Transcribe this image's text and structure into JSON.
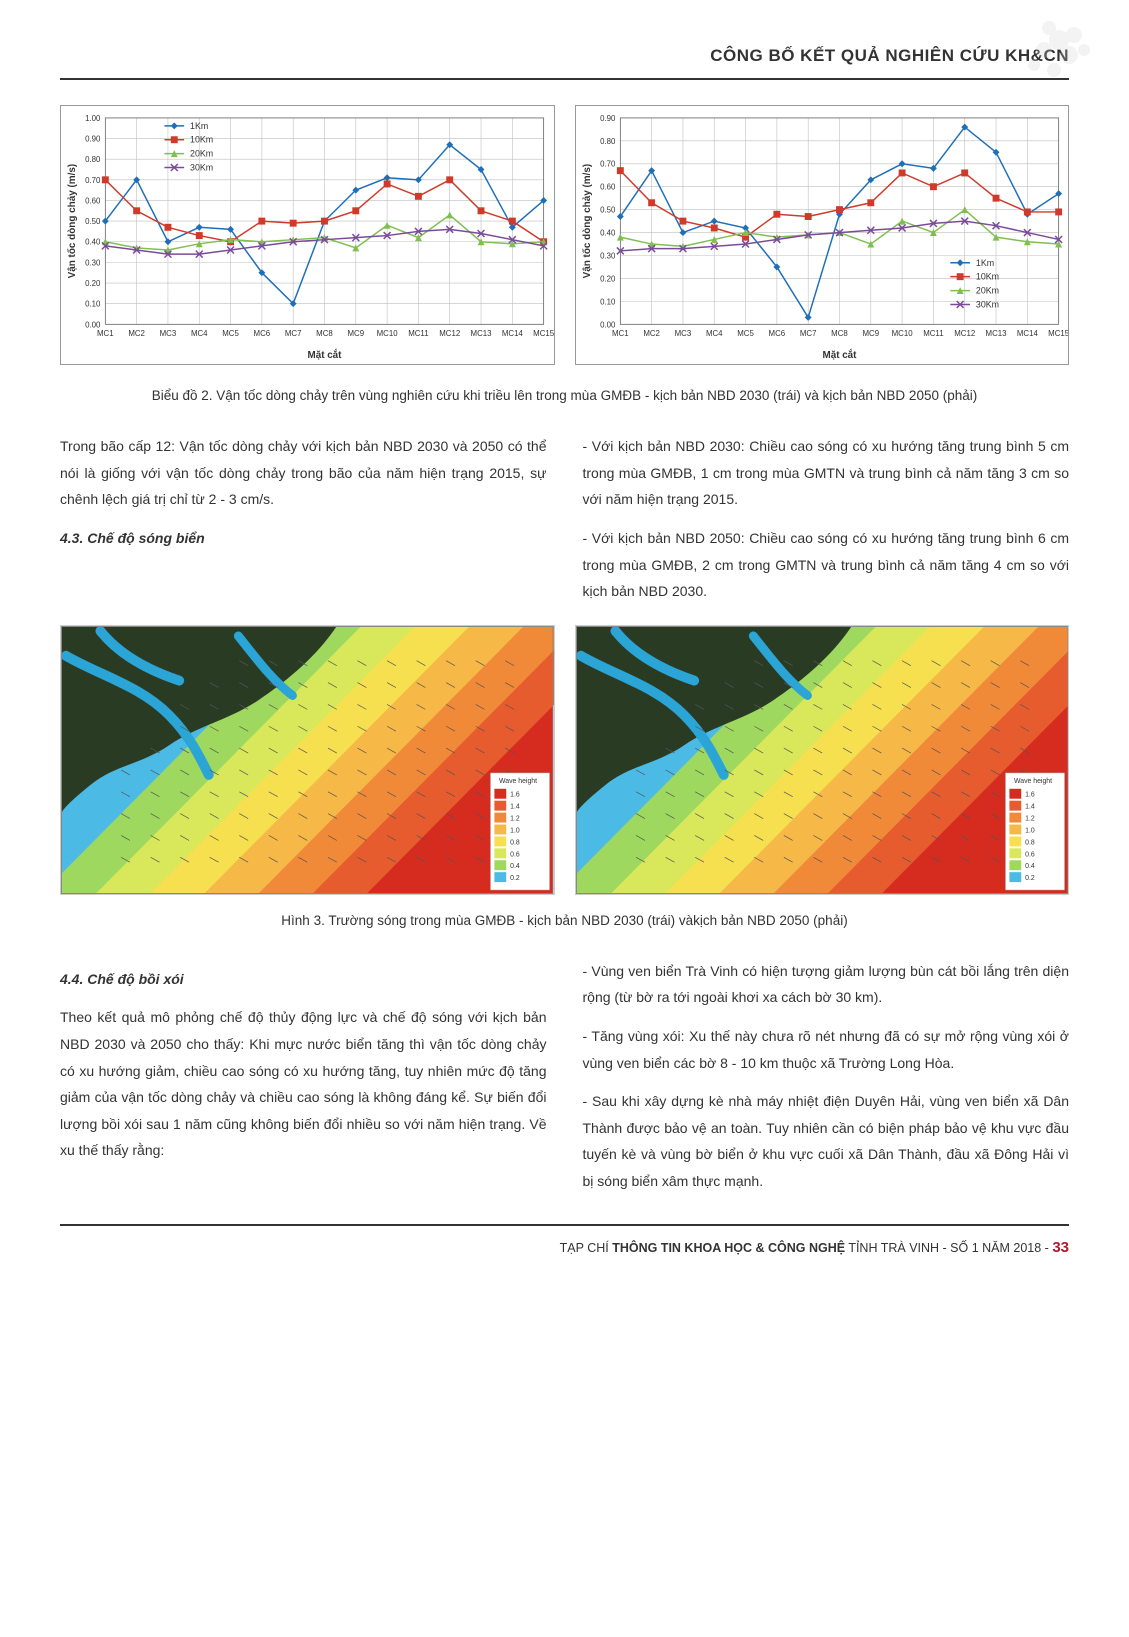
{
  "header": {
    "title": "CÔNG BỐ KẾT QUẢ NGHIÊN CỨU KH&CN"
  },
  "chart_left": {
    "type": "line",
    "xlabel": "Mặt cắt",
    "ylabel": "Vận tốc dòng chảy (m/s)",
    "ylim": [
      0.0,
      1.0
    ],
    "ytick_step": 0.1,
    "x_categories": [
      "MC1",
      "MC2",
      "MC3",
      "MC4",
      "MC5",
      "MC6",
      "MC7",
      "MC8",
      "MC9",
      "MC10",
      "MC11",
      "MC12",
      "MC13",
      "MC14",
      "MC15"
    ],
    "grid_color": "#bfbfbf",
    "background_color": "#ffffff",
    "series": [
      {
        "name": "1Km",
        "color": "#1f6fb8",
        "marker": "diamond",
        "values": [
          0.5,
          0.7,
          0.4,
          0.47,
          0.46,
          0.25,
          0.1,
          0.5,
          0.65,
          0.71,
          0.7,
          0.87,
          0.75,
          0.47,
          0.6
        ]
      },
      {
        "name": "10Km",
        "color": "#d03a2a",
        "marker": "square",
        "values": [
          0.7,
          0.55,
          0.47,
          0.43,
          0.4,
          0.5,
          0.49,
          0.5,
          0.55,
          0.68,
          0.62,
          0.7,
          0.55,
          0.5,
          0.4
        ]
      },
      {
        "name": "20Km",
        "color": "#7fbf4f",
        "marker": "triangle",
        "values": [
          0.4,
          0.37,
          0.36,
          0.39,
          0.41,
          0.4,
          0.41,
          0.42,
          0.37,
          0.48,
          0.42,
          0.53,
          0.4,
          0.39,
          0.4
        ]
      },
      {
        "name": "30Km",
        "color": "#7b4b9a",
        "marker": "cross",
        "values": [
          0.38,
          0.36,
          0.34,
          0.34,
          0.36,
          0.38,
          0.4,
          0.41,
          0.42,
          0.43,
          0.45,
          0.46,
          0.44,
          0.41,
          0.38
        ]
      }
    ],
    "legend_position": "top-left",
    "label_fontsize": 10,
    "tick_fontsize": 8
  },
  "chart_right": {
    "type": "line",
    "xlabel": "Mặt cắt",
    "ylabel": "Vận tốc dòng chảy (m/s)",
    "ylim": [
      0.0,
      0.9
    ],
    "ytick_step": 0.1,
    "x_categories": [
      "MC1",
      "MC2",
      "MC3",
      "MC4",
      "MC5",
      "MC6",
      "MC7",
      "MC8",
      "MC9",
      "MC10",
      "MC11",
      "MC12",
      "MC13",
      "MC14",
      "MC15"
    ],
    "grid_color": "#bfbfbf",
    "background_color": "#ffffff",
    "series": [
      {
        "name": "1Km",
        "color": "#1f6fb8",
        "marker": "diamond",
        "values": [
          0.47,
          0.67,
          0.4,
          0.45,
          0.42,
          0.25,
          0.03,
          0.48,
          0.63,
          0.7,
          0.68,
          0.86,
          0.75,
          0.48,
          0.57
        ]
      },
      {
        "name": "10Km",
        "color": "#d03a2a",
        "marker": "square",
        "values": [
          0.67,
          0.53,
          0.45,
          0.42,
          0.38,
          0.48,
          0.47,
          0.5,
          0.53,
          0.66,
          0.6,
          0.66,
          0.55,
          0.49,
          0.49
        ]
      },
      {
        "name": "20Km",
        "color": "#7fbf4f",
        "marker": "triangle",
        "values": [
          0.38,
          0.35,
          0.34,
          0.37,
          0.4,
          0.38,
          0.39,
          0.4,
          0.35,
          0.45,
          0.4,
          0.5,
          0.38,
          0.36,
          0.35
        ]
      },
      {
        "name": "30Km",
        "color": "#7b4b9a",
        "marker": "cross",
        "values": [
          0.32,
          0.33,
          0.33,
          0.34,
          0.35,
          0.37,
          0.39,
          0.4,
          0.41,
          0.42,
          0.44,
          0.45,
          0.43,
          0.4,
          0.37
        ]
      }
    ],
    "legend_position": "bottom-right",
    "label_fontsize": 10,
    "tick_fontsize": 8
  },
  "caption_chart": "Biểu đồ 2. Vận tốc dòng chảy trên vùng nghiên cứu khi triều lên trong mùa GMĐB - kịch bản NBD 2030 (trái) và  kịch bản NBD 2050 (phải)",
  "body1": {
    "p1": "Trong bão cấp 12: Vận tốc dòng chảy với kịch bản NBD 2030 và 2050 có thể nói là giống với vận tốc dòng chảy trong bão của năm hiện trạng 2015, sự chênh lệch giá trị chỉ từ 2 - 3 cm/s.",
    "h43": "4.3. Chế độ sóng biển",
    "p2": "- Với kịch bản NBD 2030: Chiều cao sóng có xu hướng tăng trung bình 5 cm trong mùa GMĐB, 1 cm trong mùa GMTN và trung bình cả năm tăng 3 cm so với năm hiện trạng 2015.",
    "p3": "- Với kịch bản NBD 2050: Chiều cao sóng có xu hướng tăng trung bình 6 cm trong mùa GMĐB, 2 cm trong GMTN và trung bình cả năm tăng 4 cm so với kịch bản NBD 2030."
  },
  "wave_map": {
    "type": "heatmap",
    "land_color": "#2a3b24",
    "river_color": "#2aa5d6",
    "bands": [
      {
        "color": "#4bbbe6",
        "label": "0.2"
      },
      {
        "color": "#9fd85f",
        "label": "0.4"
      },
      {
        "color": "#d8e85a",
        "label": "0.6"
      },
      {
        "color": "#f6e050",
        "label": "0.8"
      },
      {
        "color": "#f6b847",
        "label": "1.0"
      },
      {
        "color": "#f08a39",
        "label": "1.2"
      },
      {
        "color": "#e65c2e",
        "label": "1.4"
      },
      {
        "color": "#d62c20",
        "label": "1.6"
      }
    ],
    "arrow_color": "#555555",
    "legend_title": "Wave height"
  },
  "caption_map": "Hình 3. Trường sóng trong mùa GMĐB - kịch bản NBD 2030 (trái) vàkịch bản NBD 2050 (phải)",
  "body2": {
    "h44": "4.4. Chế độ bồi xói",
    "p1": "Theo kết quả mô phỏng chế độ thủy động lực và chế độ sóng với kịch bản NBD 2030 và 2050 cho thấy: Khi mực nước biển tăng thì vận tốc dòng chảy có xu hướng giảm, chiều cao sóng có xu hướng tăng, tuy nhiên mức độ tăng giảm của vận tốc dòng chảy và chiều cao sóng là không đáng kể. Sự biến đổi lượng bồi xói sau 1 năm cũng không biến đổi nhiều so với năm hiện trạng. Về xu thế thấy rằng:",
    "p2": "- Vùng ven biển Trà Vinh có hiện tượng giảm lượng bùn cát bồi lắng trên diện rộng (từ bờ ra tới ngoài khơi xa cách bờ 30 km).",
    "p3": "- Tăng vùng xói: Xu thế này chưa rõ nét nhưng đã có sự mở rộng vùng xói ở vùng ven biển các bờ 8 - 10 km thuộc xã Trường Long Hòa.",
    "p4": "- Sau khi xây dựng kè nhà máy nhiệt điện Duyên Hải, vùng ven biển xã Dân Thành được bảo vệ an toàn. Tuy nhiên cần có biện pháp bảo vệ khu vực đầu tuyến kè và vùng bờ biển ở khu vực cuối xã Dân Thành, đầu xã Đông Hải vì bị sóng biển xâm thực mạnh."
  },
  "footer": {
    "journal": "TẠP CHÍ ",
    "journal_bold": "THÔNG TIN KHOA HỌC & CÔNG NGHỆ",
    "province": " TỈNH TRÀ VINH - SỐ 1 NĂM 2018 - ",
    "page": "33"
  }
}
